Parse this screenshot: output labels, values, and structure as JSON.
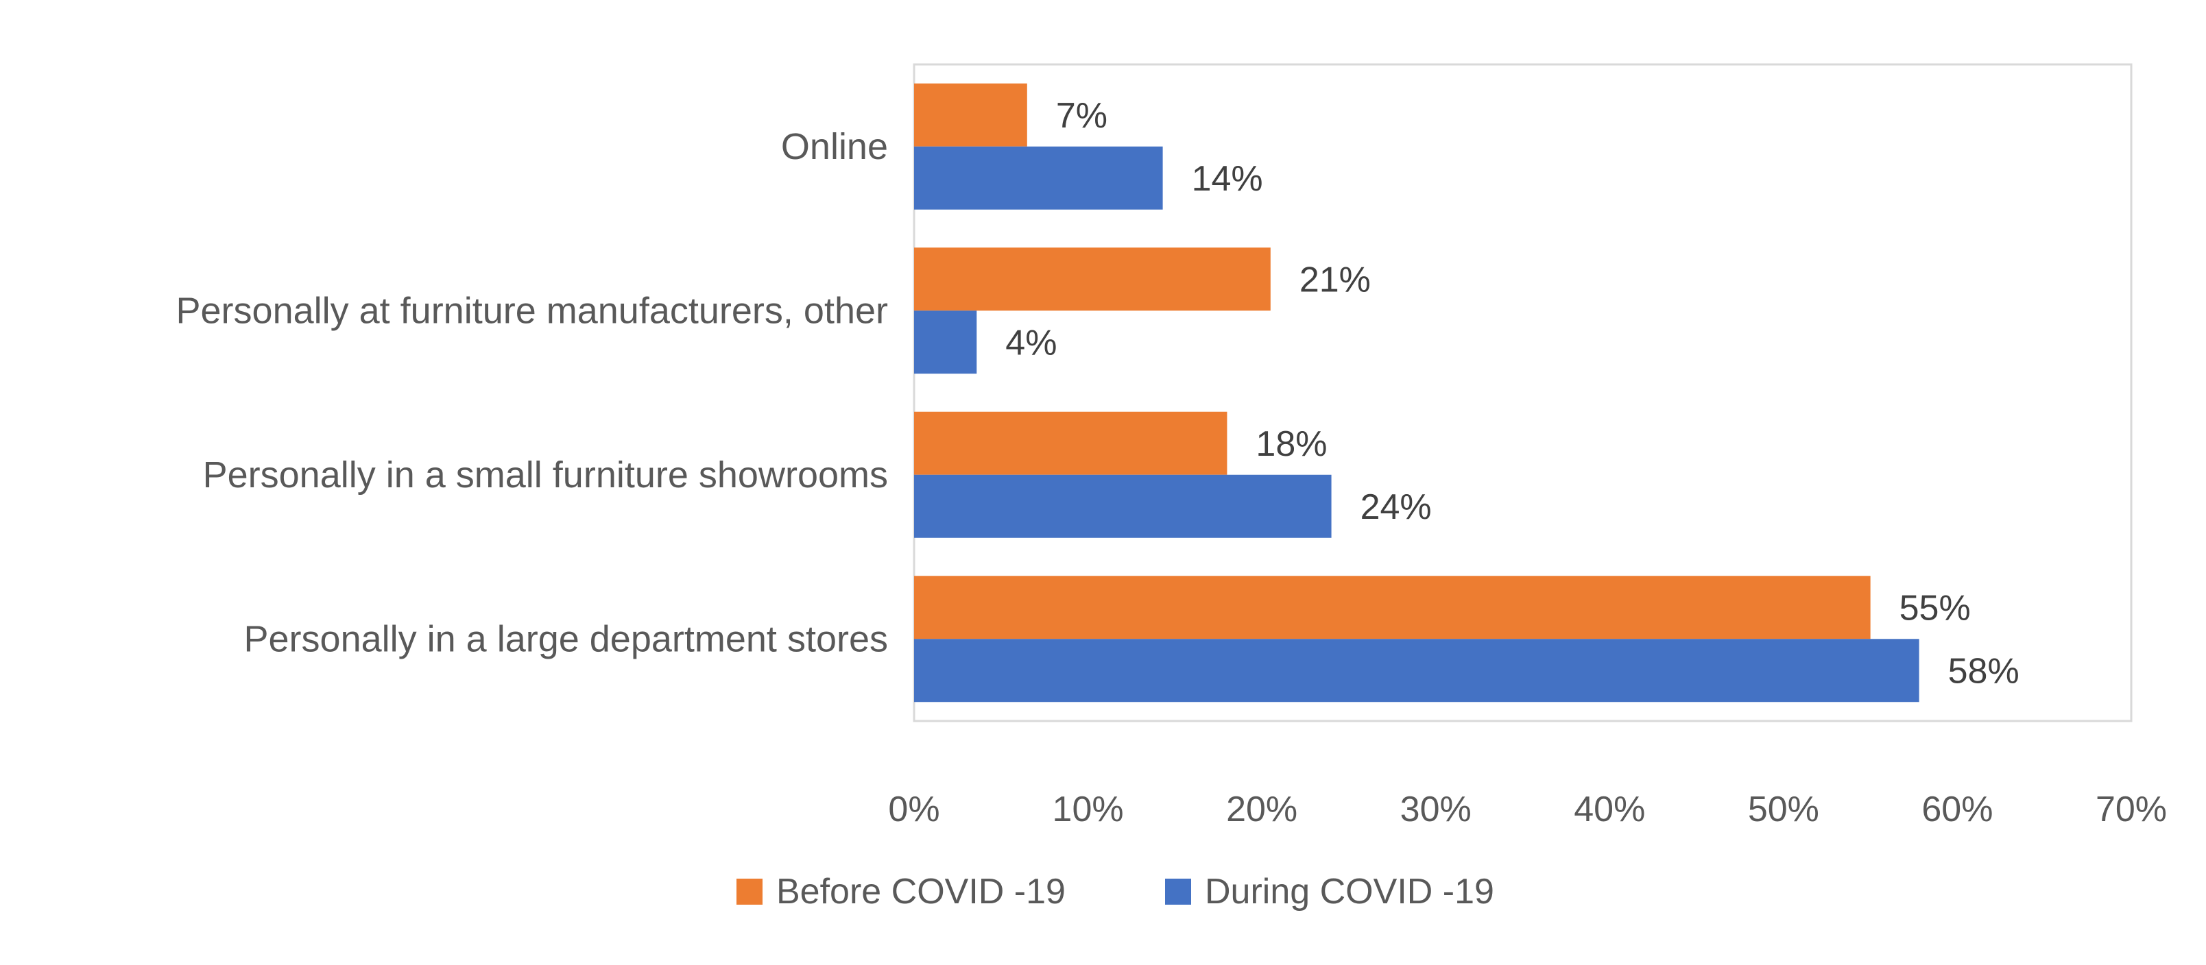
{
  "chart_data": {
    "type": "bar",
    "orientation": "horizontal",
    "categories": [
      "Online",
      "Personally at furniture manufacturers, other",
      "Personally in a small furniture showrooms",
      "Personally in a large department stores"
    ],
    "series": [
      {
        "name": "Before COVID -19",
        "color": "#ED7D31",
        "values": [
          6.5,
          20.5,
          18,
          55
        ],
        "labels": [
          "7%",
          "21%",
          "18%",
          "55%"
        ]
      },
      {
        "name": "During COVID -19",
        "color": "#4472C4",
        "values": [
          14.3,
          3.6,
          24,
          57.8
        ],
        "labels": [
          "14%",
          "4%",
          "24%",
          "58%"
        ]
      }
    ],
    "xlim": [
      0,
      70
    ],
    "x_ticks": [
      "0%",
      "10%",
      "20%",
      "30%",
      "40%",
      "50%",
      "60%",
      "70%"
    ],
    "grid": false,
    "legend_position": "bottom",
    "title": "",
    "xlabel": "",
    "ylabel": ""
  }
}
